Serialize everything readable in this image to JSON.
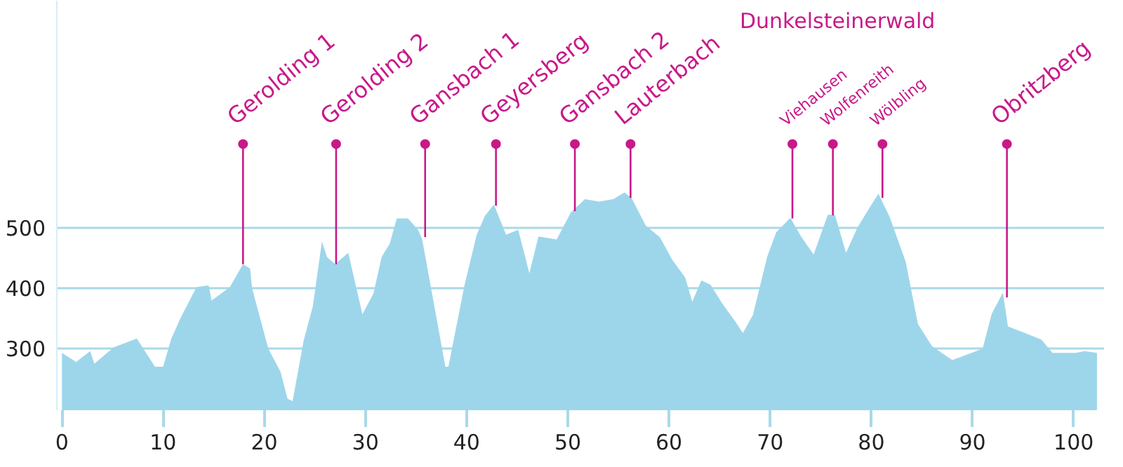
{
  "chart_data": {
    "type": "area",
    "color": "#9dd6ea",
    "x": [
      0,
      1.4,
      2.8,
      3.2,
      5.1,
      7.4,
      9.2,
      10,
      10.8,
      11.7,
      13.3,
      14.5,
      14.8,
      16.6,
      17.9,
      18.6,
      18.8,
      20.4,
      21.6,
      22.3,
      22.8,
      23.9,
      24.8,
      25.7,
      26.2,
      27.0,
      28.3,
      29.7,
      30.8,
      31.6,
      32.4,
      33.1,
      34.2,
      35.2,
      35.6,
      37.9,
      38.2,
      39.8,
      41.0,
      41.8,
      42.7,
      43.9,
      45.1,
      46.2,
      47.1,
      48.9,
      50.3,
      51.7,
      53.1,
      54.5,
      55.6,
      56.3,
      57.7,
      59.1,
      60.3,
      61.6,
      62.3,
      63.2,
      64.1,
      65.3,
      66.6,
      67.3,
      68.3,
      69.7,
      70.6,
      72.0,
      73.1,
      74.3,
      75.7,
      76.4,
      77.5,
      78.6,
      79.8,
      80.7,
      81.8,
      83.4,
      84.6,
      86.0,
      88.0,
      91.0,
      91.9,
      93.0,
      93.5,
      95.2,
      96.8,
      97.9,
      100.2,
      101.1,
      102.3
    ],
    "values": [
      293,
      278,
      296,
      275,
      302,
      317,
      270,
      270,
      316,
      350,
      402,
      405,
      380,
      402,
      440,
      433,
      400,
      300,
      262,
      217,
      213,
      314,
      370,
      478,
      452,
      440,
      459,
      357,
      392,
      452,
      474,
      516,
      516,
      497,
      482,
      270,
      270,
      406,
      489,
      520,
      539,
      489,
      497,
      425,
      486,
      481,
      526,
      548,
      544,
      548,
      559,
      550,
      504,
      485,
      448,
      418,
      378,
      413,
      406,
      374,
      344,
      326,
      356,
      452,
      493,
      517,
      485,
      456,
      522,
      522,
      459,
      500,
      533,
      557,
      519,
      444,
      341,
      304,
      281,
      300,
      358,
      393,
      337,
      326,
      315,
      293,
      293,
      296,
      293
    ],
    "xlim": [
      -0.5,
      103
    ],
    "ylim": [
      198,
      877
    ],
    "xticks": [
      0,
      10,
      20,
      30,
      40,
      50,
      60,
      70,
      80,
      90,
      100
    ],
    "yticks": [
      300,
      400,
      500
    ],
    "grid": "y",
    "annotations": [
      {
        "text": "Gerolding 1",
        "x": 17.9,
        "y": 440
      },
      {
        "text": "Gerolding 2",
        "x": 27.1,
        "y": 440
      },
      {
        "text": "Gansbach 1",
        "x": 35.9,
        "y": 485
      },
      {
        "text": "Geyersberg",
        "x": 42.9,
        "y": 537
      },
      {
        "text": "Gansbach 2",
        "x": 50.7,
        "y": 528
      },
      {
        "text": "Lauterbach",
        "x": 56.2,
        "y": 550
      },
      "Dunkelsteinerwald",
      {
        "text": "Viehausen",
        "x": 72.2,
        "y": 516
      },
      {
        "text": "Wolfenreith",
        "x": 76.2,
        "y": 521
      },
      {
        "text": "Wölbling",
        "x": 81.1,
        "y": 550
      },
      {
        "text": "Obritzberg",
        "x": 93.4,
        "y": 385
      }
    ]
  }
}
